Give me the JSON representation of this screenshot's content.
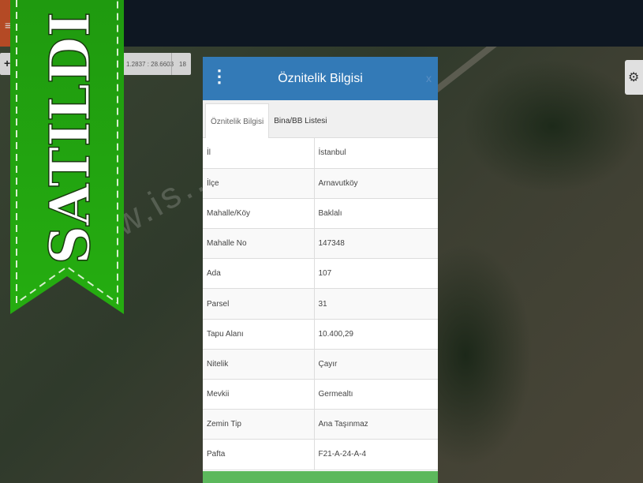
{
  "map": {
    "coordinates": "1.2837 : 28.6603",
    "zoom_level": "18",
    "watermark": "www.is...com.tr"
  },
  "ribbon": {
    "text": "SATILDI",
    "color": "#22a30f"
  },
  "panel": {
    "title": "Öznitelik Bilgisi",
    "close": "x",
    "tabs": [
      {
        "label": "Öznitelik Bilgisi",
        "active": true
      },
      {
        "label": "Bina/BB Listesi",
        "active": false
      }
    ],
    "rows": [
      {
        "label": "İl",
        "value": "İstanbul"
      },
      {
        "label": "İlçe",
        "value": "Arnavutköy"
      },
      {
        "label": "Mahalle/Köy",
        "value": "Baklalı"
      },
      {
        "label": "Mahalle No",
        "value": "147348"
      },
      {
        "label": "Ada",
        "value": "107"
      },
      {
        "label": "Parsel",
        "value": "31"
      },
      {
        "label": "Tapu Alanı",
        "value": "10.400,29"
      },
      {
        "label": "Nitelik",
        "value": "Çayır"
      },
      {
        "label": "Mevkii",
        "value": "Germealtı"
      },
      {
        "label": "Zemin Tip",
        "value": "Ana Taşınmaz"
      },
      {
        "label": "Pafta",
        "value": "F21-A-24-A-4"
      }
    ],
    "header_color": "#337ab7",
    "footer_color": "#5cb85c"
  }
}
